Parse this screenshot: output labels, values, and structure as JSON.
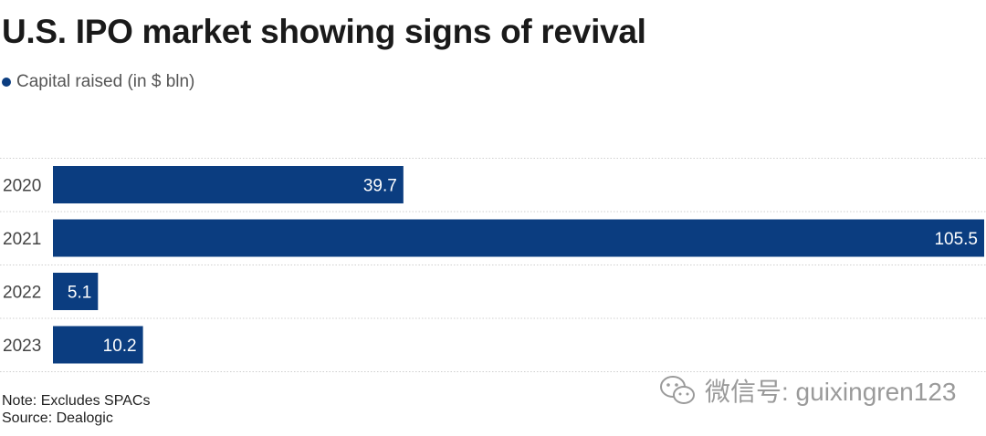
{
  "chart_data": {
    "type": "bar",
    "orientation": "horizontal",
    "title": "U.S. IPO market showing signs of revival",
    "legend": [
      {
        "label": "Capital raised (in $ bln)",
        "color": "#0b3d80"
      }
    ],
    "categories": [
      "2020",
      "2021",
      "2022",
      "2023"
    ],
    "values": [
      39.7,
      105.5,
      5.1,
      10.2
    ],
    "value_labels": [
      "39.7",
      "105.5",
      "5.1",
      "10.2"
    ],
    "xlim": [
      0,
      105.5
    ],
    "bar_color": "#0b3d80",
    "grid": "dotted row separators",
    "legend_position": "top-left"
  },
  "footer": {
    "note": "Note: Excludes SPACs",
    "source": "Source: Dealogic"
  },
  "watermark": {
    "text": "微信号: guixingren123",
    "icon": "wechat-icon"
  }
}
